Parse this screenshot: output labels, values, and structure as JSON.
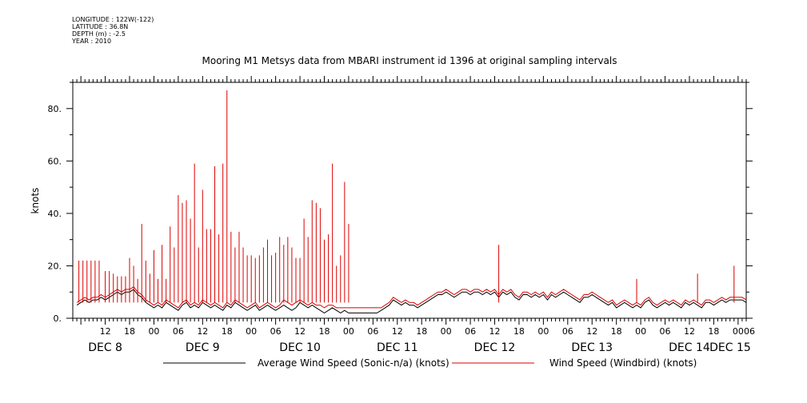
{
  "metadata": {
    "longitude": "LONGITUDE : 122W(-122)",
    "latitude": "LATITUDE : 36.8N",
    "depth": "DEPTH (m) : -2.5",
    "year": "YEAR : 2010"
  },
  "chart_data": {
    "type": "line",
    "title": "Mooring M1 Metsys data from MBARI instrument id 1396 at original sampling intervals",
    "ylabel": "knots",
    "xlabel": "",
    "ylim": [
      0,
      90
    ],
    "yticks": [
      0,
      20,
      40,
      60,
      80
    ],
    "ytick_labels": [
      "0.",
      "20.",
      "40.",
      "60.",
      "80."
    ],
    "xlim_hours": [
      4,
      170
    ],
    "hour_ticks": [
      {
        "h": 12,
        "label": "12"
      },
      {
        "h": 18,
        "label": "18"
      },
      {
        "h": 24,
        "label": "00"
      },
      {
        "h": 30,
        "label": "06"
      },
      {
        "h": 36,
        "label": "12"
      },
      {
        "h": 42,
        "label": "18"
      },
      {
        "h": 48,
        "label": "00"
      },
      {
        "h": 54,
        "label": "06"
      },
      {
        "h": 60,
        "label": "12"
      },
      {
        "h": 66,
        "label": "18"
      },
      {
        "h": 72,
        "label": "00"
      },
      {
        "h": 78,
        "label": "06"
      },
      {
        "h": 84,
        "label": "12"
      },
      {
        "h": 90,
        "label": "18"
      },
      {
        "h": 96,
        "label": "00"
      },
      {
        "h": 102,
        "label": "06"
      },
      {
        "h": 108,
        "label": "12"
      },
      {
        "h": 114,
        "label": "18"
      },
      {
        "h": 120,
        "label": "00"
      },
      {
        "h": 126,
        "label": "06"
      },
      {
        "h": 132,
        "label": "12"
      },
      {
        "h": 138,
        "label": "18"
      },
      {
        "h": 144,
        "label": "00"
      },
      {
        "h": 150,
        "label": "06"
      },
      {
        "h": 156,
        "label": "12"
      },
      {
        "h": 162,
        "label": "18"
      },
      {
        "h": 168,
        "label": "00"
      },
      {
        "h": 174,
        "label": "06"
      }
    ],
    "day_labels": [
      {
        "h": 12,
        "label": "DEC  8"
      },
      {
        "h": 36,
        "label": "DEC  9"
      },
      {
        "h": 60,
        "label": "DEC 10"
      },
      {
        "h": 84,
        "label": "DEC 11"
      },
      {
        "h": 108,
        "label": "DEC 12"
      },
      {
        "h": 132,
        "label": "DEC 13"
      },
      {
        "h": 156,
        "label": "DEC 14"
      },
      {
        "h": 177,
        "label": "DEC 15"
      }
    ],
    "series": [
      {
        "name": "Average Wind Speed (Sonic-n/a) (knots)",
        "color": "#000000",
        "x": [
          5,
          6,
          7,
          8,
          9,
          10,
          11,
          12,
          13,
          14,
          15,
          16,
          17,
          18,
          19,
          20,
          21,
          22,
          23,
          24,
          25,
          26,
          27,
          28,
          29,
          30,
          31,
          32,
          33,
          34,
          35,
          36,
          37,
          38,
          39,
          40,
          41,
          42,
          43,
          44,
          45,
          46,
          47,
          48,
          49,
          50,
          51,
          52,
          53,
          54,
          55,
          56,
          57,
          58,
          59,
          60,
          61,
          62,
          63,
          64,
          65,
          66,
          67,
          68,
          69,
          70,
          71,
          72,
          73,
          74,
          75,
          76,
          77,
          78,
          79,
          80,
          81,
          82,
          83,
          84,
          85,
          86,
          87,
          88,
          89,
          90,
          91,
          92,
          93,
          94,
          95,
          96,
          97,
          98,
          99,
          100,
          101,
          102,
          103,
          104,
          105,
          106,
          107,
          108,
          109,
          110,
          111,
          112,
          113,
          114,
          115,
          116,
          117,
          118,
          119,
          120,
          121,
          122,
          123,
          124,
          125,
          126,
          127,
          128,
          129,
          130,
          131,
          132,
          133,
          134,
          135,
          136,
          137,
          138,
          139,
          140,
          141,
          142,
          143,
          144,
          145,
          146,
          147,
          148,
          149,
          150,
          151,
          152,
          153,
          154,
          155,
          156,
          157,
          158,
          159,
          160,
          161,
          162,
          163,
          164,
          165,
          166,
          167,
          168,
          169,
          170
        ],
        "y": [
          5,
          6,
          7,
          6,
          7,
          7,
          8,
          7,
          8,
          9,
          10,
          9,
          10,
          10,
          11,
          9,
          8,
          6,
          5,
          4,
          5,
          4,
          6,
          5,
          4,
          3,
          5,
          6,
          4,
          5,
          4,
          6,
          5,
          4,
          5,
          4,
          3,
          5,
          4,
          6,
          5,
          4,
          3,
          4,
          5,
          3,
          4,
          5,
          4,
          3,
          4,
          5,
          4,
          3,
          4,
          6,
          5,
          4,
          5,
          4,
          3,
          2,
          3,
          4,
          3,
          2,
          3,
          2,
          2,
          2,
          2,
          2,
          2,
          2,
          2,
          3,
          4,
          5,
          7,
          6,
          5,
          6,
          5,
          5,
          4,
          5,
          6,
          7,
          8,
          9,
          9,
          10,
          9,
          8,
          9,
          10,
          10,
          9,
          10,
          10,
          9,
          10,
          9,
          10,
          8,
          10,
          9,
          10,
          8,
          7,
          9,
          9,
          8,
          9,
          8,
          9,
          7,
          9,
          8,
          9,
          10,
          9,
          8,
          7,
          6,
          8,
          8,
          9,
          8,
          7,
          6,
          5,
          6,
          4,
          5,
          6,
          5,
          4,
          5,
          4,
          6,
          7,
          5,
          4,
          5,
          6,
          5,
          6,
          5,
          4,
          6,
          5,
          6,
          5,
          4,
          6,
          6,
          5,
          6,
          7,
          6,
          7,
          7,
          7,
          7,
          6
        ]
      },
      {
        "name": "Wind Speed (Windbird) (knots)",
        "color": "#dd0000",
        "x": [
          5,
          6,
          7,
          8,
          9,
          10,
          11,
          12,
          13,
          14,
          15,
          16,
          17,
          18,
          19,
          20,
          21,
          22,
          23,
          24,
          25,
          26,
          27,
          28,
          29,
          30,
          31,
          32,
          33,
          34,
          35,
          36,
          37,
          38,
          39,
          40,
          41,
          42,
          43,
          44,
          45,
          46,
          47,
          48,
          49,
          50,
          51,
          52,
          53,
          54,
          55,
          56,
          57,
          58,
          59,
          60,
          61,
          62,
          63,
          64,
          65,
          66,
          67,
          68,
          69,
          70,
          71,
          72,
          73,
          74,
          75,
          76,
          77,
          78,
          79,
          80,
          81,
          82,
          83,
          84,
          85,
          86,
          87,
          88,
          89,
          90,
          91,
          92,
          93,
          94,
          95,
          96,
          97,
          98,
          99,
          100,
          101,
          102,
          103,
          104,
          105,
          106,
          107,
          108,
          109,
          110,
          111,
          112,
          113,
          114,
          115,
          116,
          117,
          118,
          119,
          120,
          121,
          122,
          123,
          124,
          125,
          126,
          127,
          128,
          129,
          130,
          131,
          132,
          133,
          134,
          135,
          136,
          137,
          138,
          139,
          140,
          141,
          142,
          143,
          144,
          145,
          146,
          147,
          148,
          149,
          150,
          151,
          152,
          153,
          154,
          155,
          156,
          157,
          158,
          159,
          160,
          161,
          162,
          163,
          164,
          165,
          166,
          167,
          168,
          169,
          170
        ],
        "y": [
          6,
          7,
          8,
          7,
          8,
          8,
          9,
          8,
          9,
          10,
          11,
          10,
          11,
          11,
          12,
          10,
          9,
          7,
          6,
          5,
          6,
          5,
          7,
          6,
          5,
          4,
          6,
          7,
          5,
          6,
          5,
          7,
          6,
          5,
          6,
          5,
          4,
          6,
          5,
          7,
          6,
          5,
          4,
          5,
          6,
          4,
          5,
          6,
          5,
          4,
          5,
          7,
          6,
          5,
          6,
          7,
          6,
          5,
          6,
          5,
          5,
          4,
          5,
          5,
          4,
          4,
          4,
          4,
          4,
          4,
          4,
          4,
          4,
          4,
          4,
          4,
          5,
          6,
          8,
          7,
          6,
          7,
          6,
          6,
          5,
          6,
          7,
          8,
          9,
          10,
          10,
          11,
          10,
          9,
          10,
          11,
          11,
          10,
          11,
          11,
          10,
          11,
          10,
          11,
          9,
          11,
          10,
          11,
          9,
          8,
          10,
          10,
          9,
          10,
          9,
          10,
          8,
          10,
          9,
          10,
          11,
          10,
          9,
          8,
          7,
          9,
          9,
          10,
          9,
          8,
          7,
          6,
          7,
          5,
          6,
          7,
          6,
          5,
          6,
          5,
          7,
          8,
          6,
          5,
          6,
          7,
          6,
          7,
          6,
          5,
          7,
          6,
          7,
          6,
          5,
          7,
          7,
          6,
          7,
          8,
          7,
          8,
          8,
          8,
          8,
          7
        ]
      },
      {
        "name": "Wind Speed (Windbird) (knots) gusts",
        "color": "#dd0000",
        "spikes": [
          [
            5.5,
            22
          ],
          [
            6.5,
            22
          ],
          [
            7.5,
            22
          ],
          [
            8.5,
            22
          ],
          [
            9.5,
            22
          ],
          [
            10.5,
            22
          ],
          [
            12,
            18
          ],
          [
            13,
            18
          ],
          [
            14,
            17
          ],
          [
            15,
            16
          ],
          [
            16,
            16
          ],
          [
            17,
            16
          ],
          [
            18,
            23
          ],
          [
            19,
            20
          ],
          [
            20,
            15
          ],
          [
            21,
            36
          ],
          [
            22,
            22
          ],
          [
            23,
            17
          ],
          [
            24,
            26
          ],
          [
            25,
            15
          ],
          [
            26,
            28
          ],
          [
            27,
            15
          ],
          [
            28,
            35
          ],
          [
            29,
            27
          ],
          [
            30,
            47
          ],
          [
            31,
            44
          ],
          [
            32,
            45
          ],
          [
            33,
            38
          ],
          [
            34,
            59
          ],
          [
            35,
            27
          ],
          [
            36,
            49
          ],
          [
            37,
            34
          ],
          [
            38,
            34
          ],
          [
            39,
            58
          ],
          [
            40,
            32
          ],
          [
            41,
            59
          ],
          [
            42,
            87
          ],
          [
            43,
            33
          ],
          [
            44,
            27
          ],
          [
            45,
            33
          ],
          [
            46,
            27
          ],
          [
            47,
            24
          ],
          [
            48,
            24
          ],
          [
            49,
            23
          ],
          [
            50,
            24
          ],
          [
            51,
            27
          ],
          [
            52,
            30
          ],
          [
            53,
            24
          ],
          [
            54,
            25
          ],
          [
            55,
            31
          ],
          [
            56,
            28
          ],
          [
            57,
            31
          ],
          [
            58,
            27
          ],
          [
            59,
            23
          ],
          [
            60,
            23
          ],
          [
            61,
            38
          ],
          [
            62,
            31
          ],
          [
            63,
            45
          ],
          [
            64,
            44
          ],
          [
            65,
            42
          ],
          [
            66,
            30
          ],
          [
            67,
            32
          ],
          [
            68,
            59
          ],
          [
            69,
            20
          ],
          [
            70,
            24
          ],
          [
            71,
            52
          ],
          [
            72,
            36
          ],
          [
            109,
            28
          ],
          [
            143,
            15
          ],
          [
            158,
            17
          ],
          [
            167,
            20
          ]
        ]
      }
    ],
    "legend": "bottom"
  }
}
